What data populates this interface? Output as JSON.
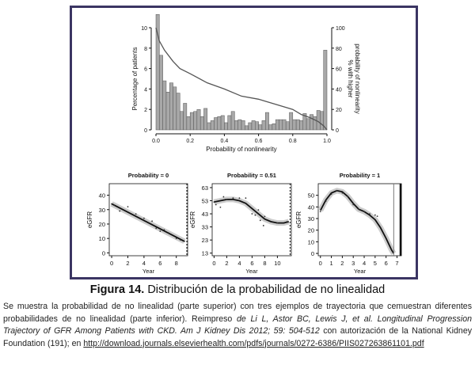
{
  "figure": {
    "caption_label": "Figura 14.",
    "caption_text": " Distribución de la probabilidad de no linealidad"
  },
  "description": {
    "part1": "Se muestra la probabilidad de no linealidad (parte superior) con tres ejemplos de trayectoria que cemuestran diferentes probabilidades de no linealidad (parte inferior). Reimpreso ",
    "citation": "de Li L, Astor BC, Lewis J, et al. Longitudinal Progression Trajectory of GFR Among Patients with CKD. Am J Kidney Dis 2012; 59: 504-512",
    "part2": " con autorización de la National Kidney Foundation (191); en ",
    "link": "http://download.journals.elsevierhealth.com/pdfs/journals/0272-6386/PIIS027263861101.pdf"
  },
  "chart_data": [
    {
      "type": "bar",
      "title": "",
      "xlabel": "Probability of nonlinearity",
      "ylabel": "Percentage of patients",
      "y2label": "% with higher probability of nonlinearity",
      "xlim": [
        0,
        1
      ],
      "ylim": [
        0,
        10
      ],
      "y2lim": [
        0,
        100
      ],
      "xticks": [
        "0.0",
        "0.2",
        "0.4",
        "0.6",
        "0.8",
        "1.0"
      ],
      "yticks": [
        "0",
        "2",
        "4",
        "6",
        "8",
        "10"
      ],
      "y2ticks": [
        "0",
        "20",
        "40",
        "60",
        "80",
        "100"
      ],
      "bin_width": 0.02,
      "values": [
        11.3,
        7.3,
        4.8,
        3.7,
        4.6,
        4.2,
        3.6,
        1.8,
        2.6,
        1.3,
        1.7,
        1.8,
        2.0,
        1.3,
        2.1,
        0.7,
        0.9,
        1.2,
        1.3,
        1.4,
        0.7,
        1.4,
        1.8,
        0.9,
        1.0,
        0.9,
        0.4,
        0.7,
        0.9,
        0.8,
        0.5,
        0.9,
        1.7,
        0.5,
        0.6,
        1.0,
        1.0,
        1.0,
        0.8,
        1.7,
        1.0,
        1.0,
        0.9,
        1.6,
        1.1,
        1.5,
        1.3,
        1.9,
        1.8,
        7.8
      ],
      "line": {
        "name": "% with higher probability",
        "x": [
          0,
          0.02,
          0.05,
          0.1,
          0.14,
          0.2,
          0.3,
          0.4,
          0.5,
          0.6,
          0.7,
          0.8,
          0.85,
          0.9,
          0.95,
          0.98,
          1.0
        ],
        "y": [
          100,
          87,
          78,
          67,
          60,
          55,
          46,
          40,
          33,
          30,
          25,
          20,
          15,
          12,
          8,
          4,
          0
        ]
      }
    },
    {
      "type": "scatter",
      "title": "Probability = 0",
      "xlabel": "Year",
      "ylabel": "eGFR",
      "xlim": [
        -0.3,
        9.4
      ],
      "ylim": [
        -2,
        48
      ],
      "xticks": [
        "0",
        "2",
        "4",
        "6",
        "8"
      ],
      "yticks": [
        "0",
        "10",
        "20",
        "30",
        "40"
      ],
      "points": {
        "x": [
          0,
          0.3,
          1,
          2,
          3,
          4,
          5,
          5.5,
          6,
          6.5,
          7,
          8,
          8.5,
          9
        ],
        "y": [
          34,
          33,
          29,
          32,
          27,
          24,
          22,
          17,
          15,
          16,
          14,
          10,
          9,
          8
        ]
      },
      "fit": {
        "x": [
          0,
          9
        ],
        "y": [
          34,
          8
        ]
      },
      "dashed_x": 9.3
    },
    {
      "type": "scatter",
      "title": "Probability = 0.51",
      "xlabel": "Year",
      "ylabel": "eGFR",
      "xlim": [
        -0.3,
        12.2
      ],
      "ylim": [
        11,
        66
      ],
      "xticks": [
        "0",
        "2",
        "4",
        "6",
        "8",
        "10"
      ],
      "yticks": [
        "13",
        "23",
        "33",
        "43",
        "53",
        "63"
      ],
      "points": {
        "x": [
          0,
          0.3,
          1,
          1.5,
          2,
          3,
          4,
          5,
          6,
          6.5,
          7,
          7.3,
          7.8,
          8,
          10,
          11.5
        ],
        "y": [
          52,
          50,
          48,
          56,
          54,
          55,
          55,
          55,
          43,
          42,
          46,
          38,
          34,
          41,
          36,
          37
        ]
      },
      "fit": {
        "x": [
          0,
          1,
          2,
          3,
          4,
          5,
          6,
          7,
          8,
          9,
          10,
          11,
          11.8
        ],
        "y": [
          52,
          53,
          54,
          54,
          53,
          51,
          47,
          43,
          39,
          37,
          36,
          36,
          37
        ]
      },
      "dashed_x": 12
    },
    {
      "type": "scatter",
      "title": "Probability = 1",
      "xlabel": "Year",
      "ylabel": "eGFR",
      "xlim": [
        -0.2,
        7.4
      ],
      "ylim": [
        -2,
        60
      ],
      "xticks": [
        "0",
        "1",
        "2",
        "3",
        "4",
        "5",
        "6",
        "7"
      ],
      "yticks": [
        "0",
        "10",
        "20",
        "30",
        "40",
        "50"
      ],
      "points": {
        "x": [
          0,
          0.5,
          1,
          1.5,
          2,
          2.5,
          3,
          3.5,
          4,
          4.5,
          5,
          5.2
        ],
        "y": [
          36,
          45,
          51,
          54,
          52,
          49,
          42,
          38,
          36,
          34,
          33,
          32
        ]
      },
      "fit": {
        "x": [
          0,
          0.5,
          1,
          1.5,
          2,
          2.5,
          3,
          3.5,
          4,
          4.5,
          5,
          5.5,
          6,
          6.5,
          6.7
        ],
        "y": [
          37,
          46,
          52,
          54,
          53,
          49,
          43,
          38,
          36,
          33,
          29,
          22,
          13,
          3,
          0
        ]
      },
      "vline_x": 6.7
    }
  ]
}
